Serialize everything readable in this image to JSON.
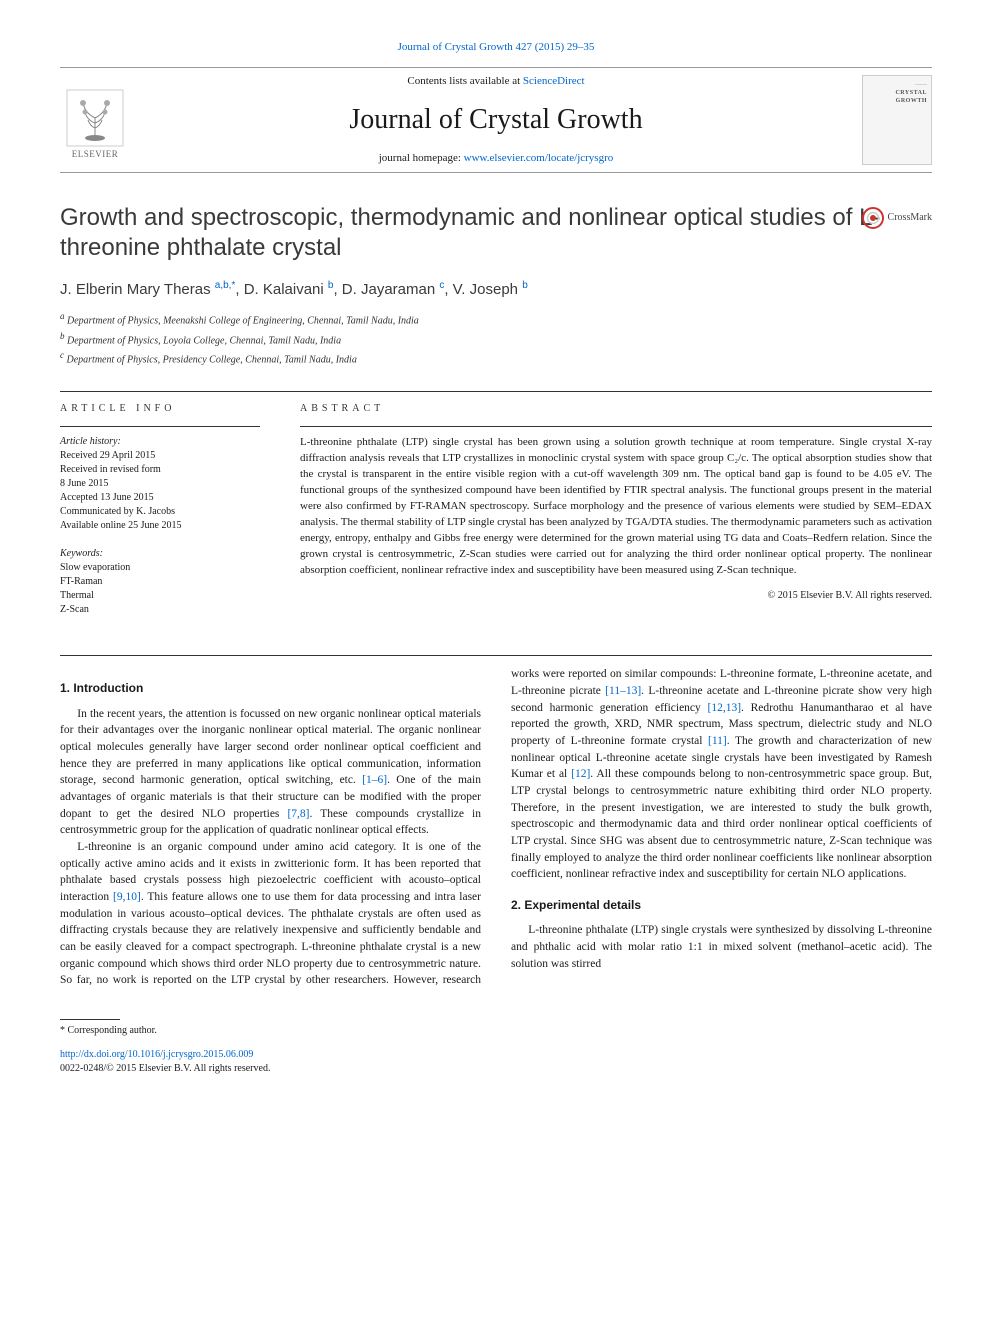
{
  "header": {
    "top_link_prefix": "Journal of Crystal Growth 427 (2015) 29–35",
    "contents_prefix": "Contents lists available at ",
    "contents_link": "ScienceDirect",
    "journal_name": "Journal of Crystal Growth",
    "homepage_prefix": "journal homepage: ",
    "homepage_url": "www.elsevier.com/locate/jcrysgro",
    "elsevier_label": "ELSEVIER",
    "cover_text_top": "……",
    "cover_text_title": "CRYSTAL GROWTH"
  },
  "crossmark": {
    "label": "CrossMark"
  },
  "article": {
    "title": "Growth and spectroscopic, thermodynamic and nonlinear optical studies of L-threonine phthalate crystal",
    "authors_html": "J. Elberin Mary Theras <sup>a,b,*</sup>, D. Kalaivani <sup>b</sup>, D. Jayaraman <sup>c</sup>, V. Joseph <sup>b</sup>",
    "affiliations": [
      "a Department of Physics, Meenakshi College of Engineering, Chennai, Tamil Nadu, India",
      "b Department of Physics, Loyola College, Chennai, Tamil Nadu, India",
      "c Department of Physics, Presidency College, Chennai, Tamil Nadu, India"
    ]
  },
  "info": {
    "label": "ARTICLE INFO",
    "history_label": "Article history:",
    "history": [
      "Received 29 April 2015",
      "Received in revised form",
      "8 June 2015",
      "Accepted 13 June 2015",
      "Communicated by K. Jacobs",
      "Available online 25 June 2015"
    ],
    "keywords_label": "Keywords:",
    "keywords": [
      "Slow evaporation",
      "FT-Raman",
      "Thermal",
      "Z-Scan"
    ]
  },
  "abstract": {
    "label": "ABSTRACT",
    "text": "L-threonine phthalate (LTP) single crystal has been grown using a solution growth technique at room temperature. Single crystal X-ray diffraction analysis reveals that LTP crystallizes in monoclinic crystal system with space group C₂/c. The optical absorption studies show that the crystal is transparent in the entire visible region with a cut-off wavelength 309 nm. The optical band gap is found to be 4.05 eV. The functional groups of the synthesized compound have been identified by FTIR spectral analysis. The functional groups present in the material were also confirmed by FT-RAMAN spectroscopy. Surface morphology and the presence of various elements were studied by SEM–EDAX analysis. The thermal stability of LTP single crystal has been analyzed by TGA/DTA studies. The thermodynamic parameters such as activation energy, entropy, enthalpy and Gibbs free energy were determined for the grown material using TG data and Coats–Redfern relation. Since the grown crystal is centrosymmetric, Z-Scan studies were carried out for analyzing the third order nonlinear optical property. The nonlinear absorption coefficient, nonlinear refractive index and susceptibility have been measured using Z-Scan technique.",
    "copyright": "© 2015 Elsevier B.V. All rights reserved."
  },
  "sections": {
    "intro_heading": "1. Introduction",
    "intro_p1_a": "In the recent years, the attention is focussed on new organic nonlinear optical materials for their advantages over the inorganic nonlinear optical material. The organic nonlinear optical molecules generally have larger second order nonlinear optical coefficient and hence they are preferred in many applications like optical communication, information storage, second harmonic generation, optical switching, etc. ",
    "intro_ref1": "[1–6]",
    "intro_p1_b": ". One of the main advantages of organic materials is that their structure can be modified with the proper dopant to get the desired NLO properties ",
    "intro_ref2": "[7,8]",
    "intro_p1_c": ". These compounds crystallize in centrosymmetric group for the application of quadratic nonlinear optical effects.",
    "intro_p2_a": "L-threonine is an organic compound under amino acid category. It is one of the optically active amino acids and it exists in zwitterionic form. It has been reported that phthalate based crystals possess high piezoelectric coefficient with acousto–optical interaction ",
    "intro_ref3": "[9,10]",
    "intro_p2_b": ". This feature allows one to use them for data processing and intra laser modulation in various acousto–optical devices. The phthalate crystals are often used as diffracting crystals because they are relatively inexpensive and sufficiently bendable and can be easily cleaved for a compact spectrograph. L-threonine phthalate crystal is a new organic compound which shows third order NLO property due to centrosymmetric nature. So far, no work is reported on the LTP crystal by other researchers. However, research works were reported on similar compounds: L-threonine formate, L-threonine acetate, and L-threonine picrate ",
    "intro_ref4": "[11–13]",
    "intro_p2_c": ". L-threonine acetate and L-threonine picrate show very high second harmonic generation efficiency ",
    "intro_ref5": "[12,13]",
    "intro_p2_d": ". Redrothu Hanumantharao et al have reported the growth, XRD, NMR spectrum, Mass spectrum, dielectric study and NLO property of L-threonine formate crystal ",
    "intro_ref6": "[11]",
    "intro_p2_e": ". The growth and characterization of new nonlinear optical L-threonine acetate single crystals have been investigated by Ramesh Kumar et al ",
    "intro_ref7": "[12]",
    "intro_p2_f": ". All these compounds belong to non-centrosymmetric space group. But, LTP crystal belongs to centrosymmetric nature exhibiting third order NLO property. Therefore, in the present investigation, we are interested to study the bulk growth, spectroscopic and thermodynamic data and third order nonlinear optical coefficients of LTP crystal. Since SHG was absent due to centrosymmetric nature, Z-Scan technique was finally employed to analyze the third order nonlinear coefficients like nonlinear absorption coefficient, nonlinear refractive index and susceptibility for certain NLO applications.",
    "exp_heading": "2. Experimental details",
    "exp_p1": "L-threonine phthalate (LTP) single crystals were synthesized by dissolving L-threonine and phthalic acid with molar ratio 1:1 in mixed solvent (methanol–acetic acid). The solution was stirred"
  },
  "footer": {
    "corr": "* Corresponding author.",
    "doi_url": "http://dx.doi.org/10.1016/j.jcrysgro.2015.06.009",
    "issn_line": "0022-0248/© 2015 Elsevier B.V. All rights reserved."
  },
  "colors": {
    "link": "#0066cc",
    "text": "#1a1a1a",
    "rule": "#333333",
    "crossmark_ring": "#c0392b",
    "elsevier_orange": "#e67e22"
  }
}
